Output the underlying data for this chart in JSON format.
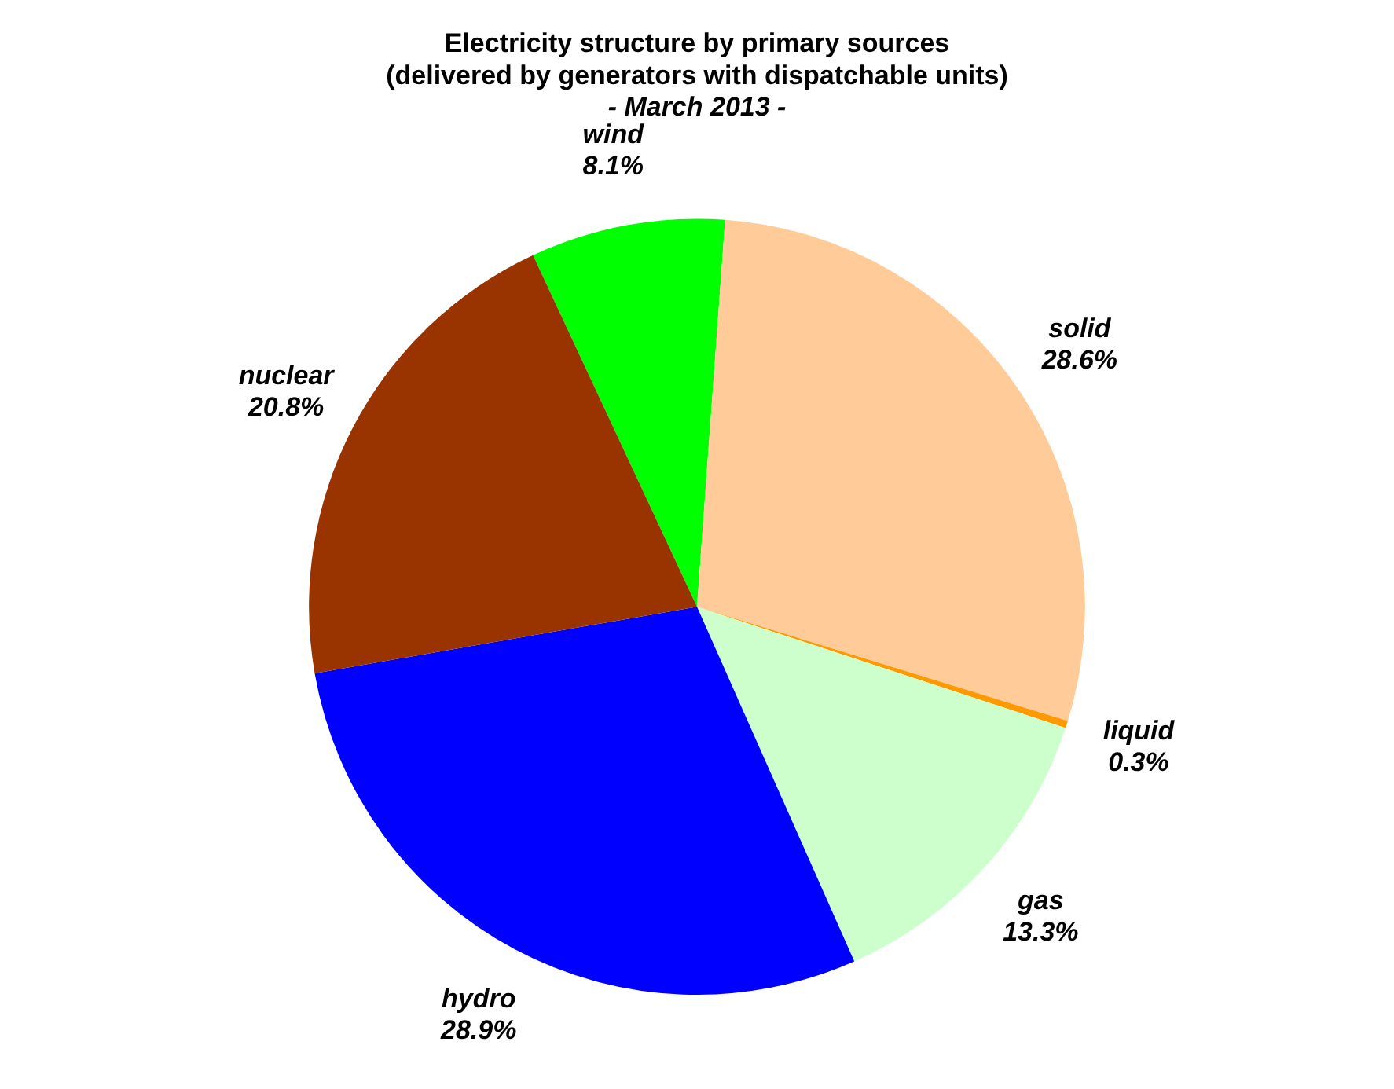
{
  "chart_data": {
    "type": "pie",
    "title": "Electricity structure by primary sources\n(delivered by generators with dispatchable units)",
    "subtitle": "- March 2013 -",
    "categories": [
      "wind",
      "solid",
      "liquid",
      "gas",
      "hydro",
      "nuclear"
    ],
    "values": [
      8.1,
      28.6,
      0.3,
      13.3,
      28.9,
      20.8
    ],
    "value_labels": [
      "8.1%",
      "28.6%",
      "0.3%",
      "13.3%",
      "28.9%",
      "20.8%"
    ],
    "colors": [
      "#00ff00",
      "#ffcc99",
      "#ff9900",
      "#ccffcc",
      "#0000ff",
      "#993300"
    ],
    "legend": false
  }
}
